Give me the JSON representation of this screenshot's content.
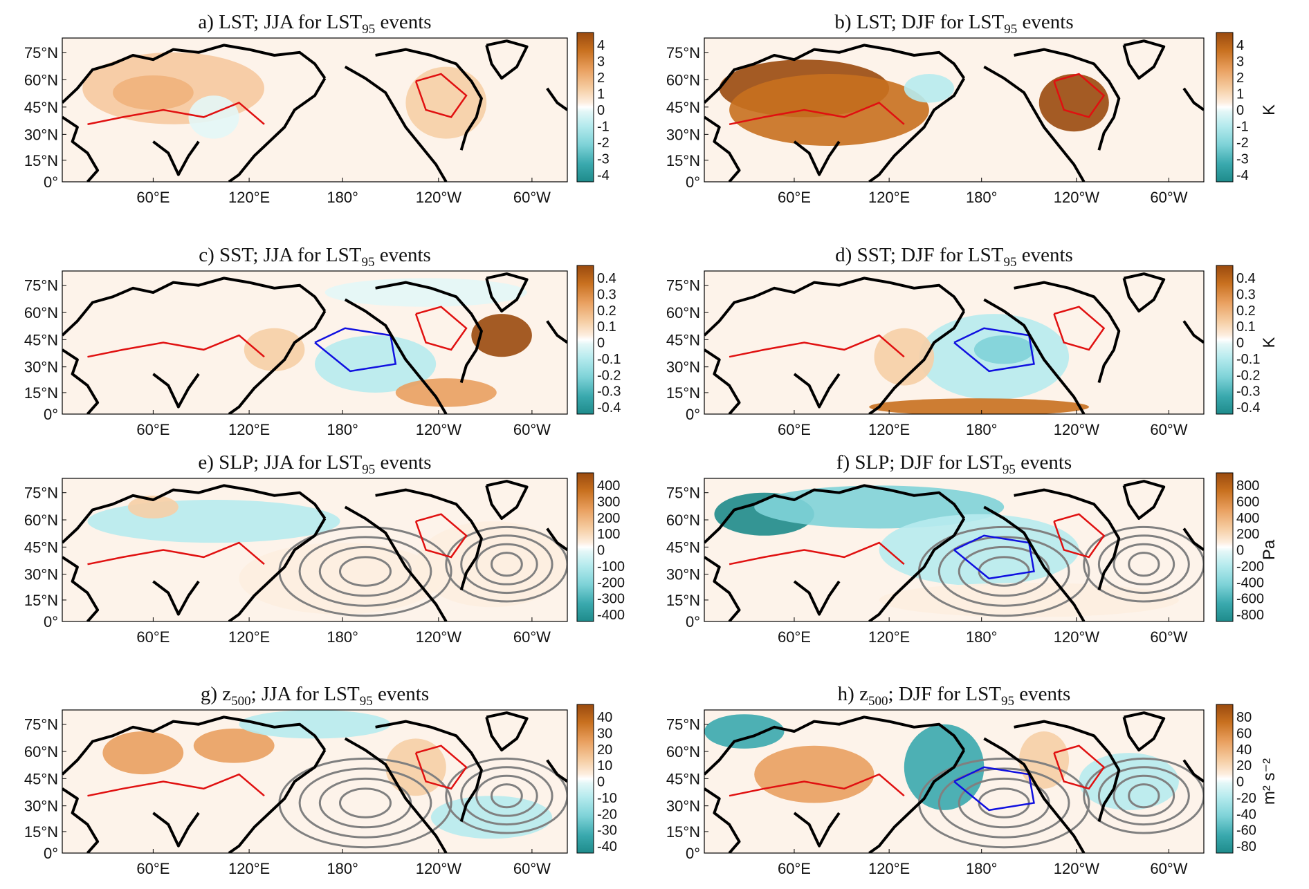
{
  "figure": {
    "description_panels": "8 global-map composite panels (a-h), 2 columns x 4 rows",
    "lat_labels": [
      "75°N",
      "60°N",
      "45°N",
      "30°N",
      "15°N",
      "0°"
    ],
    "lon_labels": [
      "60°E",
      "120°E",
      "180°",
      "120°W",
      "60°W"
    ],
    "colors": {
      "warm": "#9a4a0e",
      "cool": "#1e8b8b",
      "land_outline": "#000000",
      "pos_contour": "#e01010",
      "neg_contour": "#1010e0",
      "gray_contour": "#808080"
    }
  },
  "panels": [
    {
      "id": "a",
      "title_pre": "a) LST; JJA for LST",
      "title_sub": "95",
      "title_post": " events",
      "colorbar": {
        "ticks": [
          "4",
          "3",
          "2",
          "1",
          "0",
          "-1",
          "-2",
          "-3",
          "-4"
        ],
        "unit": "",
        "unit_sup": ""
      }
    },
    {
      "id": "b",
      "title_pre": "b) LST; DJF for LST",
      "title_sub": "95",
      "title_post": " events",
      "colorbar": {
        "ticks": [
          "4",
          "3",
          "2",
          "1",
          "0",
          "-1",
          "-2",
          "-3",
          "-4"
        ],
        "unit": "K",
        "unit_sup": ""
      }
    },
    {
      "id": "c",
      "title_pre": "c) SST; JJA for LST",
      "title_sub": "95",
      "title_post": " events",
      "colorbar": {
        "ticks": [
          "0.4",
          "0.3",
          "0.2",
          "0.1",
          "0",
          "-0.1",
          "-0.2",
          "-0.3",
          "-0.4"
        ],
        "unit": "",
        "unit_sup": ""
      }
    },
    {
      "id": "d",
      "title_pre": "d) SST; DJF for LST",
      "title_sub": "95",
      "title_post": " events",
      "colorbar": {
        "ticks": [
          "0.4",
          "0.3",
          "0.2",
          "0.1",
          "0",
          "-0.1",
          "-0.2",
          "-0.3",
          "-0.4"
        ],
        "unit": "K",
        "unit_sup": ""
      }
    },
    {
      "id": "e",
      "title_pre": "e) SLP; JJA for LST",
      "title_sub": "95",
      "title_post": " events",
      "colorbar": {
        "ticks": [
          "400",
          "300",
          "200",
          "100",
          "0",
          "-100",
          "-200",
          "-300",
          "-400"
        ],
        "unit": "",
        "unit_sup": ""
      }
    },
    {
      "id": "f",
      "title_pre": "f) SLP; DJF for LST",
      "title_sub": "95",
      "title_post": " events",
      "colorbar": {
        "ticks": [
          "800",
          "600",
          "400",
          "200",
          "0",
          "-200",
          "-400",
          "-600",
          "-800"
        ],
        "unit": "Pa",
        "unit_sup": ""
      }
    },
    {
      "id": "g",
      "title_pre": "g) z",
      "title_sub": "500",
      "title_post": "; JJA for LST",
      "title_sub2": "95",
      "title_post2": " events",
      "colorbar": {
        "ticks": [
          "40",
          "30",
          "20",
          "10",
          "0",
          "-10",
          "-20",
          "-30",
          "-40"
        ],
        "unit": "",
        "unit_sup": ""
      }
    },
    {
      "id": "h",
      "title_pre": "h) z",
      "title_sub": "500",
      "title_post": "; DJF for LST",
      "title_sub2": "95",
      "title_post2": " events",
      "colorbar": {
        "ticks": [
          "80",
          "60",
          "40",
          "20",
          "0",
          "-20",
          "-40",
          "-60",
          "-80"
        ],
        "unit": "m² s⁻²",
        "unit_sup": ""
      }
    }
  ]
}
